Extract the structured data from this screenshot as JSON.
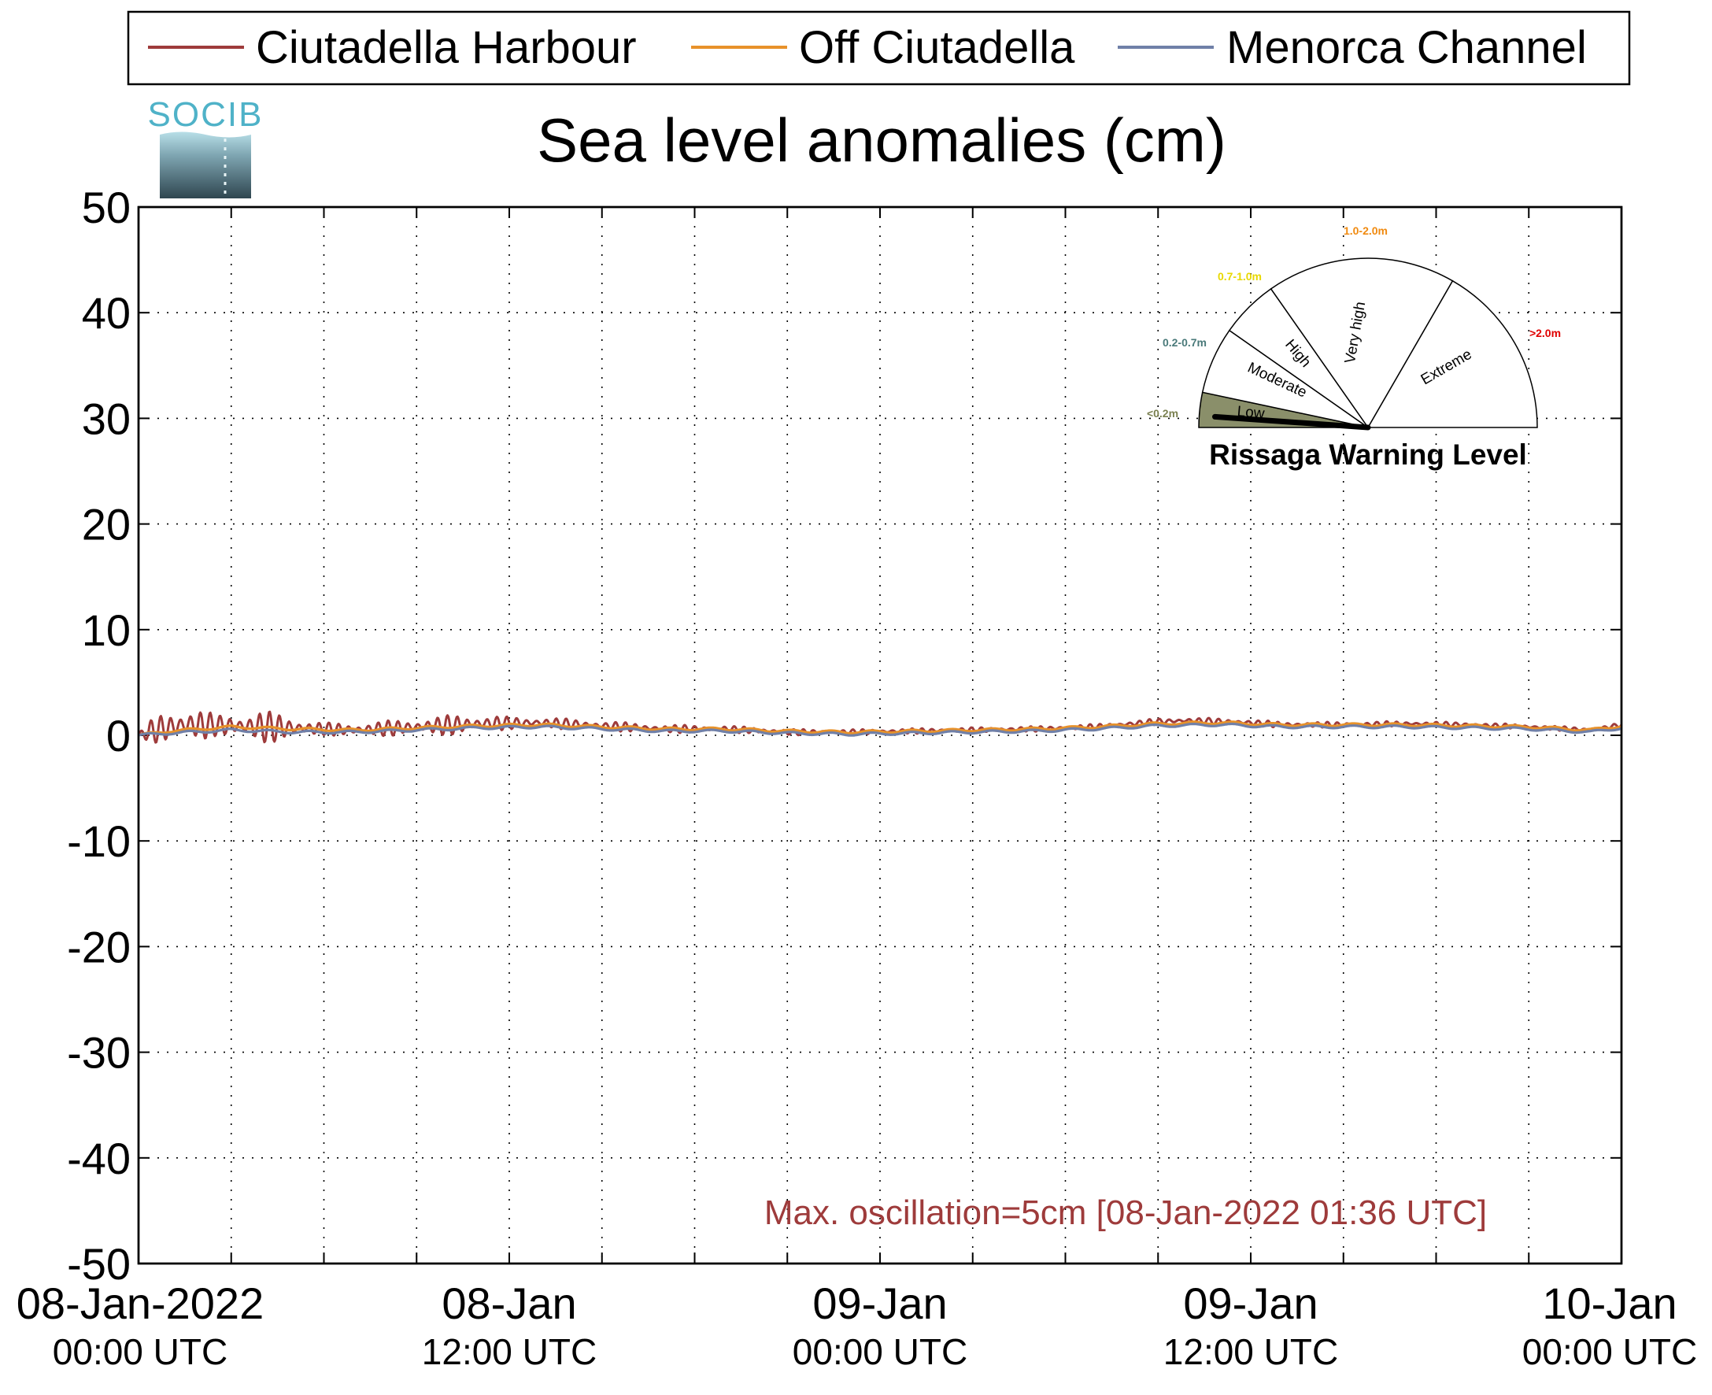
{
  "chart_data": {
    "type": "line",
    "title": "Sea level anomalies (cm)",
    "ylim": [
      -50,
      50
    ],
    "yticks": [
      50,
      40,
      30,
      20,
      10,
      0,
      -10,
      -20,
      -30,
      -40,
      -50
    ],
    "xlim_hours": [
      0,
      48
    ],
    "x_axis_unit": "hours after 08-Jan-2022 00:00 UTC",
    "grid": true,
    "legend_position": "top (above plot)",
    "xtick_labels": [
      {
        "hours": 0,
        "date": "08-Jan-2022",
        "time": "00:00 UTC"
      },
      {
        "hours": 12,
        "date": "08-Jan",
        "time": "12:00 UTC"
      },
      {
        "hours": 24,
        "date": "09-Jan",
        "time": "00:00 UTC"
      },
      {
        "hours": 36,
        "date": "09-Jan",
        "time": "12:00 UTC"
      },
      {
        "hours": 48,
        "date": "10-Jan",
        "time": "00:00 UTC"
      }
    ],
    "series": [
      {
        "name": "Ciutadella Harbour",
        "color": "#9e3b3b",
        "baseline_x": [
          0,
          0.5,
          1.5,
          3,
          5,
          7,
          9,
          11,
          13,
          15,
          17,
          19,
          21,
          23,
          25,
          27,
          29,
          31,
          33,
          34,
          35,
          36,
          37,
          39,
          41,
          43,
          45,
          47,
          48
        ],
        "baseline_y": [
          0,
          0.5,
          1.0,
          0.9,
          0.7,
          0.5,
          0.8,
          1.1,
          1.2,
          0.9,
          0.6,
          0.6,
          0.3,
          0.3,
          0.4,
          0.5,
          0.6,
          0.8,
          1.3,
          1.4,
          1.3,
          1.2,
          1.0,
          1.0,
          1.1,
          1.0,
          0.8,
          0.5,
          1.0
        ],
        "oscillation_x": [
          0,
          0.5,
          1.6,
          2.5,
          4,
          6,
          9,
          10.5,
          12,
          14,
          17,
          20,
          24,
          30,
          33,
          36,
          40,
          48
        ],
        "oscillation_amplitude": [
          0.3,
          1.2,
          2.0,
          1.0,
          1.6,
          0.6,
          0.8,
          1.0,
          0.6,
          0.5,
          0.4,
          0.3,
          0.25,
          0.25,
          0.3,
          0.3,
          0.25,
          0.2
        ]
      },
      {
        "name": "Off Ciutadella",
        "color": "#e8922a",
        "baseline_x": [
          0,
          1,
          3,
          5,
          7,
          9,
          11,
          13,
          15,
          17,
          19,
          21,
          23,
          25,
          27,
          29,
          31,
          33,
          35,
          37,
          39,
          41,
          43,
          45,
          47,
          48
        ],
        "baseline_y": [
          0,
          0.4,
          0.8,
          0.6,
          0.5,
          0.7,
          0.9,
          1.0,
          0.8,
          0.6,
          0.6,
          0.4,
          0.3,
          0.4,
          0.5,
          0.6,
          0.8,
          1.1,
          1.2,
          1.0,
          1.0,
          1.0,
          0.9,
          0.8,
          0.5,
          0.9
        ]
      },
      {
        "name": "Menorca Channel",
        "color": "#7080a8",
        "baseline_x": [
          0,
          1,
          3,
          5,
          7,
          9,
          11,
          13,
          15,
          17,
          19,
          21,
          23,
          25,
          27,
          29,
          31,
          33,
          35,
          37,
          39,
          41,
          43,
          45,
          47,
          48
        ],
        "baseline_y": [
          0,
          0.2,
          0.5,
          0.3,
          0.3,
          0.5,
          0.7,
          0.8,
          0.6,
          0.4,
          0.4,
          0.2,
          0.1,
          0.2,
          0.3,
          0.4,
          0.6,
          0.9,
          1.0,
          0.8,
          0.8,
          0.8,
          0.7,
          0.6,
          0.3,
          0.7
        ]
      }
    ],
    "annotation": "Max. oscillation=5cm [08-Jan-2022 01:36 UTC]",
    "annotation_color": "#9e3b3b"
  },
  "logo": {
    "text": "SOCIB"
  },
  "gauge": {
    "title": "Rissaga Warning Level",
    "needle_level": "Low",
    "sectors": [
      {
        "label": "Low",
        "range": "<0.2m",
        "range_color": "#7a8050",
        "fill": "#8a8f6a",
        "active": true
      },
      {
        "label": "Moderate",
        "range": "0.2-0.7m",
        "range_color": "#4a7a7a",
        "fill": "#ffffff",
        "active": false
      },
      {
        "label": "High",
        "range": "0.7-1.0m",
        "range_color": "#e8d800",
        "fill": "#ffffff",
        "active": false
      },
      {
        "label": "Very high",
        "range": "1.0-2.0m",
        "range_color": "#f08a10",
        "fill": "#ffffff",
        "active": false
      },
      {
        "label": "Extreme",
        "range": ">2.0m",
        "range_color": "#e00000",
        "fill": "#ffffff",
        "active": false
      }
    ]
  }
}
